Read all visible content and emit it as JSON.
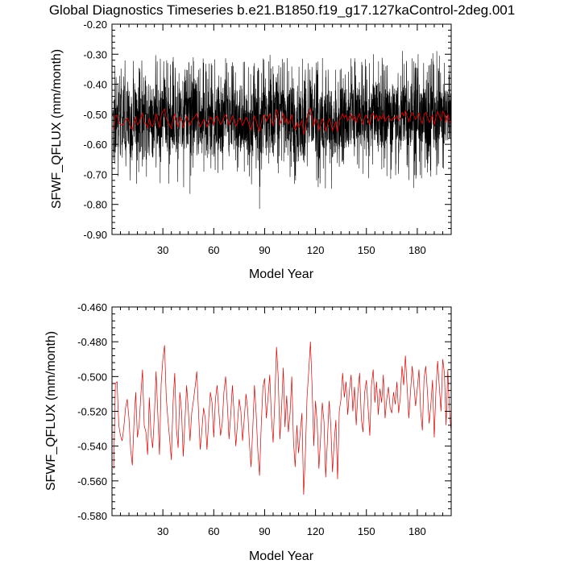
{
  "page_title": "Global Diagnostics Timeseries b.e21.B1850.f19_g17.127kaControl-2deg.001",
  "chart_data": [
    {
      "type": "line",
      "xlabel": "Model Year",
      "ylabel": "SFWF_QFLUX (mm/month)",
      "xlim": [
        0,
        200
      ],
      "ylim": [
        -0.9,
        -0.2
      ],
      "x_ticks": [
        30,
        60,
        90,
        120,
        150,
        180
      ],
      "x_tick_labels": [
        "30",
        "60",
        "90",
        "120",
        "150",
        "180"
      ],
      "y_ticks": [
        -0.9,
        -0.8,
        -0.7,
        -0.6,
        -0.5,
        -0.4,
        -0.3,
        -0.2
      ],
      "y_tick_labels": [
        "-0.90",
        "-0.80",
        "-0.70",
        "-0.60",
        "-0.50",
        "-0.40",
        "-0.30",
        "-0.20"
      ],
      "grid": false,
      "series": [
        {
          "color": "#000000",
          "style": "monthly values",
          "mean": -0.52,
          "typical_range": [
            -0.66,
            -0.33
          ],
          "extremes": [
            {
              "x": 46,
              "y": -0.765
            },
            {
              "x": 87,
              "y": -0.815
            },
            {
              "x": 178,
              "y": -0.745
            }
          ]
        },
        {
          "color": "#e00000",
          "style": "annual mean",
          "x": [
            1,
            2,
            3,
            4,
            5,
            6,
            7,
            8,
            9,
            10,
            11,
            12,
            13,
            14,
            15,
            16,
            17,
            18,
            19,
            20,
            21,
            22,
            23,
            24,
            25,
            26,
            27,
            28,
            29,
            30,
            31,
            32,
            33,
            34,
            35,
            36,
            37,
            38,
            39,
            40,
            41,
            42,
            43,
            44,
            45,
            46,
            47,
            48,
            49,
            50,
            51,
            52,
            53,
            54,
            55,
            56,
            57,
            58,
            59,
            60,
            61,
            62,
            63,
            64,
            65,
            66,
            67,
            68,
            69,
            70,
            71,
            72,
            73,
            74,
            75,
            76,
            77,
            78,
            79,
            80,
            81,
            82,
            83,
            84,
            85,
            86,
            87,
            88,
            89,
            90,
            91,
            92,
            93,
            94,
            95,
            96,
            97,
            98,
            99,
            100,
            101,
            102,
            103,
            104,
            105,
            106,
            107,
            108,
            109,
            110,
            111,
            112,
            113,
            114,
            115,
            116,
            117,
            118,
            119,
            120,
            121,
            122,
            123,
            124,
            125,
            126,
            127,
            128,
            129,
            130,
            131,
            132,
            133,
            134,
            135,
            136,
            137,
            138,
            139,
            140,
            141,
            142,
            143,
            144,
            145,
            146,
            147,
            148,
            149,
            150,
            151,
            152,
            153,
            154,
            155,
            156,
            157,
            158,
            159,
            160,
            161,
            162,
            163,
            164,
            165,
            166,
            167,
            168,
            169,
            170,
            171,
            172,
            173,
            174,
            175,
            176,
            177,
            178,
            179,
            180,
            181,
            182,
            183,
            184,
            185,
            186,
            187,
            188,
            189,
            190,
            191,
            192,
            193,
            194,
            195,
            196,
            197,
            198,
            199,
            200
          ],
          "y": [
            -0.553,
            -0.504,
            -0.503,
            -0.528,
            -0.534,
            -0.537,
            -0.529,
            -0.518,
            -0.513,
            -0.524,
            -0.542,
            -0.551,
            -0.526,
            -0.509,
            -0.535,
            -0.528,
            -0.511,
            -0.496,
            -0.528,
            -0.532,
            -0.545,
            -0.512,
            -0.533,
            -0.541,
            -0.522,
            -0.497,
            -0.521,
            -0.545,
            -0.504,
            -0.49,
            -0.482,
            -0.512,
            -0.525,
            -0.536,
            -0.548,
            -0.515,
            -0.498,
            -0.53,
            -0.541,
            -0.509,
            -0.52,
            -0.546,
            -0.526,
            -0.505,
            -0.519,
            -0.537,
            -0.521,
            -0.514,
            -0.506,
            -0.497,
            -0.52,
            -0.542,
            -0.531,
            -0.518,
            -0.524,
            -0.542,
            -0.525,
            -0.509,
            -0.515,
            -0.535,
            -0.513,
            -0.505,
            -0.52,
            -0.534,
            -0.527,
            -0.509,
            -0.5,
            -0.516,
            -0.536,
            -0.522,
            -0.505,
            -0.521,
            -0.54,
            -0.527,
            -0.513,
            -0.52,
            -0.537,
            -0.524,
            -0.51,
            -0.519,
            -0.538,
            -0.552,
            -0.53,
            -0.505,
            -0.521,
            -0.543,
            -0.557,
            -0.528,
            -0.506,
            -0.501,
            -0.524,
            -0.512,
            -0.499,
            -0.523,
            -0.538,
            -0.514,
            -0.483,
            -0.5,
            -0.536,
            -0.518,
            -0.495,
            -0.529,
            -0.511,
            -0.532,
            -0.521,
            -0.5,
            -0.537,
            -0.552,
            -0.528,
            -0.544,
            -0.532,
            -0.521,
            -0.568,
            -0.545,
            -0.512,
            -0.497,
            -0.48,
            -0.506,
            -0.54,
            -0.514,
            -0.527,
            -0.553,
            -0.535,
            -0.515,
            -0.526,
            -0.558,
            -0.537,
            -0.514,
            -0.528,
            -0.555,
            -0.538,
            -0.525,
            -0.559,
            -0.52,
            -0.513,
            -0.498,
            -0.512,
            -0.503,
            -0.522,
            -0.508,
            -0.499,
            -0.52,
            -0.506,
            -0.528,
            -0.509,
            -0.498,
            -0.524,
            -0.532,
            -0.509,
            -0.502,
            -0.518,
            -0.534,
            -0.505,
            -0.496,
            -0.515,
            -0.503,
            -0.522,
            -0.507,
            -0.515,
            -0.499,
            -0.524,
            -0.513,
            -0.506,
            -0.518,
            -0.521,
            -0.509,
            -0.516,
            -0.503,
            -0.521,
            -0.512,
            -0.494,
            -0.505,
            -0.488,
            -0.506,
            -0.524,
            -0.509,
            -0.494,
            -0.505,
            -0.517,
            -0.507,
            -0.496,
            -0.52,
            -0.531,
            -0.501,
            -0.494,
            -0.509,
            -0.527,
            -0.516,
            -0.502,
            -0.535,
            -0.508,
            -0.491,
            -0.506,
            -0.52,
            -0.49,
            -0.498,
            -0.528,
            -0.496,
            -0.52,
            -0.532
          ]
        }
      ]
    },
    {
      "type": "line",
      "xlabel": "Model Year",
      "ylabel": "SFWF_QFLUX (mm/month)",
      "xlim": [
        0,
        200
      ],
      "ylim": [
        -0.58,
        -0.46
      ],
      "x_ticks": [
        30,
        60,
        90,
        120,
        150,
        180
      ],
      "x_tick_labels": [
        "30",
        "60",
        "90",
        "120",
        "150",
        "180"
      ],
      "y_ticks": [
        -0.58,
        -0.56,
        -0.54,
        -0.52,
        -0.5,
        -0.48,
        -0.46
      ],
      "y_tick_labels": [
        "-0.580",
        "-0.560",
        "-0.540",
        "-0.520",
        "-0.500",
        "-0.480",
        "-0.460"
      ],
      "grid": false,
      "series": [
        {
          "color": "#e00000",
          "style": "annual mean",
          "same_as": "chart_data.0.series.1"
        }
      ]
    }
  ]
}
